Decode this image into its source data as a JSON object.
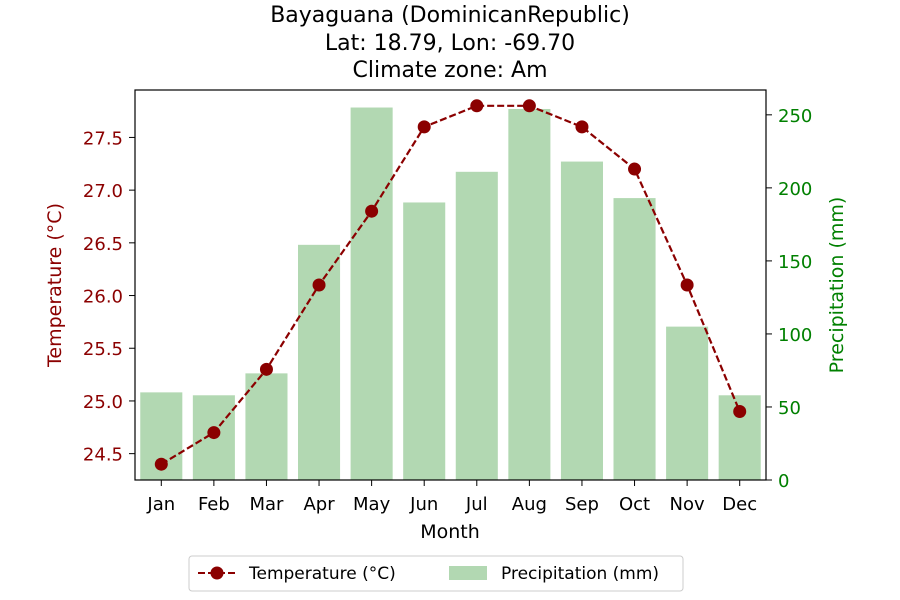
{
  "chart_data": {
    "type": "bar",
    "title_lines": [
      "Bayaguana (DominicanRepublic)",
      "Lat: 18.79, Lon: -69.70",
      "Climate zone: Am"
    ],
    "xlabel": "Month",
    "ylabel_left": "Temperature (°C)",
    "ylabel_right": "Precipitation (mm)",
    "categories": [
      "Jan",
      "Feb",
      "Mar",
      "Apr",
      "May",
      "Jun",
      "Jul",
      "Aug",
      "Sep",
      "Oct",
      "Nov",
      "Dec"
    ],
    "series": [
      {
        "name": "Temperature (°C)",
        "kind": "line",
        "axis": "left",
        "color": "#8b0000",
        "values": [
          24.4,
          24.7,
          25.3,
          26.1,
          26.8,
          27.6,
          27.8,
          27.8,
          27.6,
          27.2,
          26.1,
          24.9
        ]
      },
      {
        "name": "Precipitation (mm)",
        "kind": "bar",
        "axis": "right",
        "color": "#b2d8b2",
        "values": [
          60,
          58,
          73,
          161,
          255,
          190,
          211,
          254,
          218,
          193,
          105,
          58
        ]
      }
    ],
    "ylim_left": [
      24.25,
      27.95
    ],
    "yticks_left": [
      "24.5",
      "25.0",
      "25.5",
      "26.0",
      "26.5",
      "27.0",
      "27.5"
    ],
    "ylim_right": [
      0,
      267
    ],
    "yticks_right": [
      "0",
      "50",
      "100",
      "150",
      "200",
      "250"
    ],
    "left_axis_color": "#8b0000",
    "right_axis_color": "#008000",
    "grid": false,
    "legend_position": "bottom-center",
    "legend": [
      "Temperature (°C)",
      "Precipitation (mm)"
    ]
  }
}
